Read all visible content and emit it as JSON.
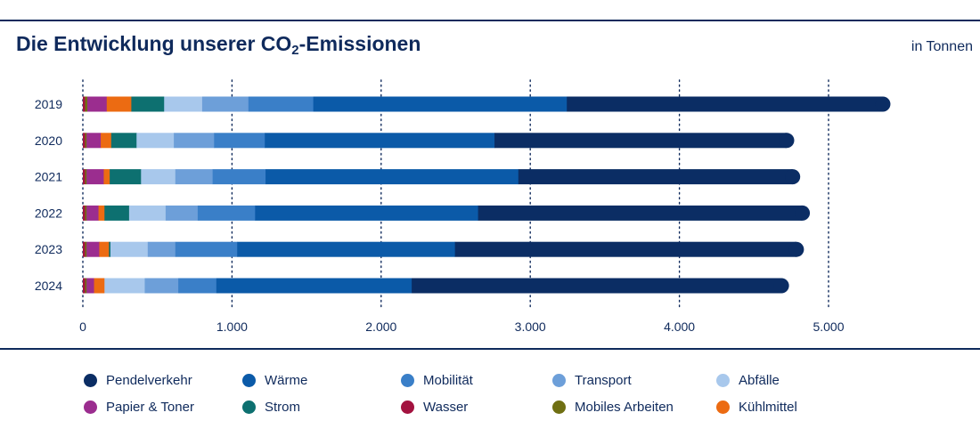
{
  "title": {
    "main": "Die Entwicklung unserer CO",
    "sub": "2",
    "tail": "-Emissionen"
  },
  "units": "in Tonnen",
  "colors": {
    "Pendelverkehr": "#0b2d64",
    "Wärme": "#0b5aa8",
    "Mobilität": "#3a7fc8",
    "Transport": "#6d9fd9",
    "Abfälle": "#a8c8ec",
    "Papier & Toner": "#9b2d8f",
    "Strom": "#0d7070",
    "Wasser": "#a3123f",
    "Mobiles Arbeiten": "#6f6f12",
    "Kühlmittel": "#ec6b12"
  },
  "legend": [
    [
      "Pendelverkehr",
      "Wärme",
      "Mobilität",
      "Transport",
      "Abfälle"
    ],
    [
      "Papier & Toner",
      "Strom",
      "Wasser",
      "Mobiles Arbeiten",
      "Kühlmittel"
    ]
  ],
  "chart_data": {
    "type": "bar",
    "orientation": "horizontal",
    "stacked": true,
    "categories": [
      "2019",
      "2020",
      "2021",
      "2022",
      "2023",
      "2024"
    ],
    "xlim": [
      0,
      5000
    ],
    "xticks": [
      0,
      1000,
      2000,
      3000,
      4000,
      5000
    ],
    "xtick_labels": [
      "0",
      "1.000",
      "2.000",
      "3.000",
      "4.000",
      "5.000"
    ],
    "grid": "vertical dotted",
    "legend_position": "bottom",
    "series": [
      {
        "name": "Wasser",
        "values": [
          15,
          15,
          15,
          15,
          15,
          15
        ]
      },
      {
        "name": "Mobiles Arbeiten",
        "values": [
          15,
          10,
          10,
          10,
          10,
          10
        ]
      },
      {
        "name": "Papier & Toner",
        "values": [
          130,
          95,
          115,
          80,
          85,
          50
        ]
      },
      {
        "name": "Kühlmittel",
        "values": [
          165,
          70,
          40,
          40,
          65,
          70
        ]
      },
      {
        "name": "Strom",
        "values": [
          220,
          170,
          210,
          165,
          10,
          0
        ]
      },
      {
        "name": "Abfälle",
        "values": [
          255,
          250,
          230,
          245,
          250,
          270
        ]
      },
      {
        "name": "Transport",
        "values": [
          310,
          270,
          250,
          215,
          185,
          225
        ]
      },
      {
        "name": "Mobilität",
        "values": [
          435,
          340,
          355,
          385,
          415,
          255
        ]
      },
      {
        "name": "Wärme",
        "values": [
          1700,
          1540,
          1695,
          1495,
          1460,
          1310
        ]
      },
      {
        "name": "Pendelverkehr",
        "values": [
          2170,
          2010,
          1890,
          2225,
          2340,
          2530
        ]
      }
    ]
  }
}
